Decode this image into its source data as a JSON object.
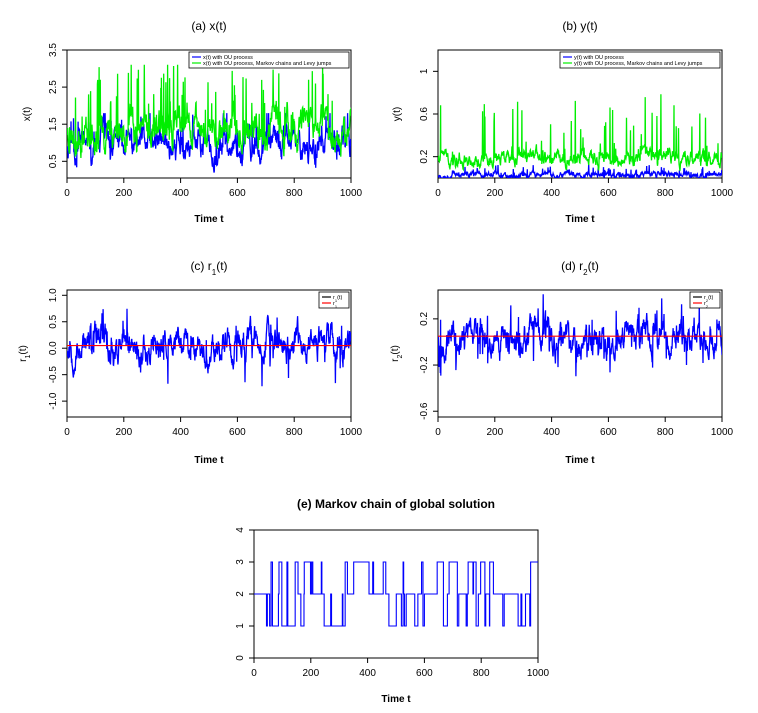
{
  "colors": {
    "blue": "#0000ff",
    "green": "#00ee00",
    "red": "#ff0000",
    "black": "#000000"
  },
  "chart_data": [
    {
      "id": "a",
      "type": "line",
      "title": "(a) x(t)",
      "xlabel": "Time t",
      "ylabel": "x(t)",
      "xlim": [
        0,
        1000
      ],
      "ylim": [
        0.05,
        3.5
      ],
      "xticks": [
        0,
        200,
        400,
        600,
        800,
        1000
      ],
      "yticks": [
        0.5,
        1.5,
        2.5,
        3.5
      ],
      "legend": "top-right",
      "series": [
        {
          "name": "x(t) with OU process",
          "color": "blue",
          "base": 0.95,
          "amp": 0.45,
          "spike": 0.9,
          "seed": 11,
          "min": 0.08,
          "max": 1.8
        },
        {
          "name": "x(t) with OU process, Markov chains and Levy jumps",
          "color": "green",
          "base": 1.35,
          "amp": 0.55,
          "spike": 1.8,
          "seed": 23,
          "min": 0.08,
          "max": 3.1
        }
      ]
    },
    {
      "id": "b",
      "type": "line",
      "title": "(b) y(t)",
      "xlabel": "Time t",
      "ylabel": "y(t)",
      "xlim": [
        0,
        1000
      ],
      "ylim": [
        0.0,
        1.2
      ],
      "xticks": [
        0,
        200,
        400,
        600,
        800,
        1000
      ],
      "yticks": [
        0.2,
        0.6,
        1.0
      ],
      "legend": "top-right",
      "series": [
        {
          "name": "y(t) with OU process",
          "color": "blue",
          "base": 0.03,
          "amp": 0.03,
          "spike": 0.08,
          "seed": 37,
          "min": 0.0,
          "max": 0.15
        },
        {
          "name": "y(t) with OU process, Markov chains and Levy jumps",
          "color": "green",
          "base": 0.18,
          "amp": 0.08,
          "spike": 0.55,
          "seed": 41,
          "min": 0.05,
          "max": 0.95
        }
      ]
    },
    {
      "id": "c",
      "type": "line",
      "title": "(c) r",
      "title_sub": "1",
      "title_tail": "(t)",
      "xlabel": "Time t",
      "ylabel": "r",
      "ylabel_sub": "1",
      "ylabel_tail": "(t)",
      "xlim": [
        0,
        1000
      ],
      "ylim": [
        -1.3,
        1.1
      ],
      "xticks": [
        0,
        200,
        400,
        600,
        800,
        1000
      ],
      "yticks": [
        -1.0,
        -0.5,
        0.0,
        0.5,
        1.0
      ],
      "ytick_labels": [
        "-1.0",
        "-0.5",
        "0.0",
        "0.5",
        "1.0"
      ],
      "legend": "top-right",
      "mean_line": 0.05,
      "series": [
        {
          "name": "r1(t)",
          "color": "blue",
          "base": 0.05,
          "amp": 0.35,
          "spike": 0.55,
          "seed": 53,
          "min": -1.3,
          "max": 1.1
        },
        {
          "name": "r1",
          "color": "red"
        }
      ]
    },
    {
      "id": "d",
      "type": "line",
      "title": "(d) r",
      "title_sub": "2",
      "title_tail": "(t)",
      "xlabel": "Time t",
      "ylabel": "r",
      "ylabel_sub": "2",
      "ylabel_tail": "(t)",
      "xlim": [
        0,
        1000
      ],
      "ylim": [
        -0.65,
        0.45
      ],
      "xticks": [
        0,
        200,
        400,
        600,
        800,
        1000
      ],
      "yticks": [
        -0.6,
        -0.2,
        0.2
      ],
      "ytick_labels": [
        "-0.6",
        "-0.2",
        "0.2"
      ],
      "legend": "top-right",
      "mean_line": 0.05,
      "series": [
        {
          "name": "r2(t)",
          "color": "blue",
          "base": 0.05,
          "amp": 0.15,
          "spike": 0.28,
          "seed": 67,
          "min": -0.65,
          "max": 0.45
        },
        {
          "name": "r2",
          "color": "red"
        }
      ]
    },
    {
      "id": "e",
      "type": "line",
      "title": "(e) Markov chain of global solution",
      "xlabel": "Time t",
      "ylabel": "",
      "xlim": [
        0,
        1000
      ],
      "ylim": [
        0,
        4
      ],
      "xticks": [
        0,
        200,
        400,
        600,
        800,
        1000
      ],
      "yticks": [
        0,
        1,
        2,
        3,
        4
      ],
      "states": [
        1,
        2,
        3
      ],
      "series": [
        {
          "name": "Markov chain",
          "color": "blue",
          "seed": 89
        }
      ]
    }
  ]
}
